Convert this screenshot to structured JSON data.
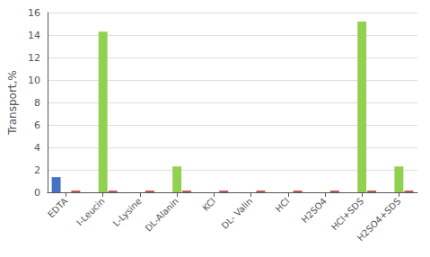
{
  "chart_data": {
    "type": "bar",
    "categories": [
      "EDTA",
      "I-Leucin",
      "L-Lysine",
      "DL-Alanin",
      "KCl",
      "DL- Valin",
      "HCl",
      "H2SO4",
      "HCl+SDS",
      "H2SO4+SDS"
    ],
    "series": [
      {
        "color": "#4472C4",
        "values": [
          1.35,
          0.0,
          0.0,
          0.0,
          0.0,
          0.0,
          0.0,
          0.0,
          0.0,
          0.0
        ]
      },
      {
        "color": "#92D050",
        "values": [
          0.0,
          14.3,
          0.0,
          2.3,
          0.0,
          0.0,
          0.0,
          0.0,
          15.2,
          2.3
        ]
      },
      {
        "color": "#C0504D",
        "values": [
          0.15,
          0.15,
          0.15,
          0.15,
          0.15,
          0.15,
          0.15,
          0.15,
          0.15,
          0.15
        ]
      }
    ],
    "ylabel": "Transport,%",
    "ylim": [
      0,
      16
    ],
    "yticks": [
      0,
      2,
      4,
      6,
      8,
      10,
      12,
      14,
      16
    ],
    "grid": true
  }
}
